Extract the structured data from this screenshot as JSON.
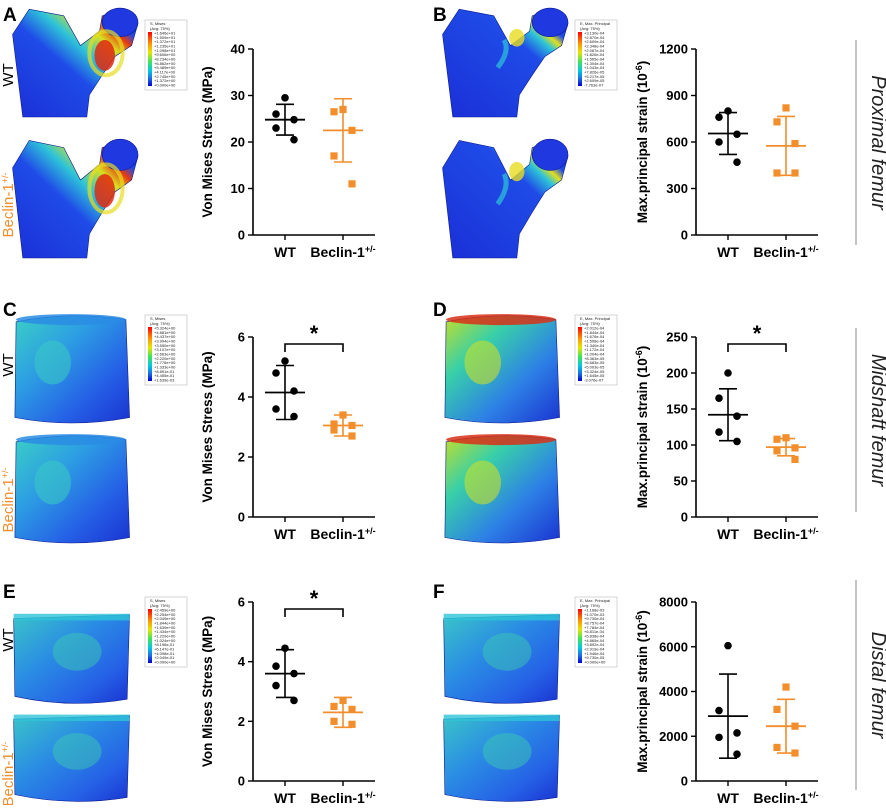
{
  "panels": [
    {
      "id": "A",
      "row": 0,
      "col": 0,
      "model": "prox",
      "fe_top_label": "WT",
      "fe_bottom_label": "Beclin-1+/-",
      "legend": {
        "title": "S, Mises",
        "subtitle": "(Avg: 75%)",
        "values": [
          "+1.646e+01",
          "+1.509e+01",
          "+1.372e+01",
          "+1.235e+01",
          "+1.098e+01",
          "+9.606e+00",
          "+8.234e+00",
          "+6.862e+00",
          "+5.489e+00",
          "+4.117e+00",
          "+2.745e+00",
          "+1.372e+00",
          "+0.000e+00"
        ]
      }
    },
    {
      "id": "B",
      "row": 0,
      "col": 1,
      "model": "prox",
      "fe_top_label": "",
      "fe_bottom_label": "",
      "legend": {
        "title": "E, Max. Principal",
        "subtitle": "(Avg: 75%)",
        "values": [
          "+3.130e-04",
          "+2.870e-04",
          "+2.609e-04",
          "+2.348e-04",
          "+2.087e-04",
          "+1.826e-04",
          "+1.565e-04",
          "+1.304e-04",
          "+1.043e-04",
          "+7.826e-05",
          "+5.217e-05",
          "+2.609e-05",
          "-7.763e-07"
        ]
      }
    },
    {
      "id": "C",
      "row": 1,
      "col": 0,
      "model": "mid",
      "fe_top_label": "WT",
      "fe_bottom_label": "Beclin-1+/-",
      "legend": {
        "title": "S, Mises",
        "subtitle": "(Avg: 75%)",
        "values": [
          "+5.324e+00",
          "+4.881e+00",
          "+4.437e+00",
          "+3.994e+00",
          "+3.550e+00",
          "+3.107e+00",
          "+2.663e+00",
          "+2.220e+00",
          "+1.776e+00",
          "+1.333e+00",
          "+8.891e-01",
          "+4.455e-01",
          "+1.639e-03"
        ]
      }
    },
    {
      "id": "D",
      "row": 1,
      "col": 1,
      "model": "mid",
      "fe_top_label": "",
      "fe_bottom_label": "",
      "legend": {
        "title": "E, Max. Principal",
        "subtitle": "(Avg: 75%)",
        "values": [
          "+2.012e-04",
          "+1.844e-04",
          "+1.676e-04",
          "+1.508e-04",
          "+1.340e-04",
          "+1.172e-04",
          "+1.004e-04",
          "+8.363e-05",
          "+6.683e-05",
          "+5.003e-05",
          "+3.324e-05",
          "+1.645e-05",
          "-3.076e-07"
        ]
      }
    },
    {
      "id": "E",
      "row": 2,
      "col": 0,
      "model": "dist",
      "fe_top_label": "WT",
      "fe_bottom_label": "Beclin-1+/-",
      "legend": {
        "title": "S, Mises",
        "subtitle": "(Avg: 75%)",
        "values": [
          "+2.459e+00",
          "+2.254e+00",
          "+2.049e+00",
          "+1.844e+00",
          "+1.639e+00",
          "+1.434e+00",
          "+1.229e+00",
          "+1.024e+00",
          "+8.196e-01",
          "+6.147e-01",
          "+4.098e-01",
          "+2.049e-01",
          "+0.000e+00"
        ]
      }
    },
    {
      "id": "F",
      "row": 2,
      "col": 1,
      "model": "dist",
      "fe_top_label": "",
      "fe_bottom_label": "",
      "legend": {
        "title": "E, Max. Principal",
        "subtitle": "(Avg: 75%)",
        "values": [
          "+1.168e-03",
          "+1.070e-03",
          "+9.730e-04",
          "+8.757e-04",
          "+7.784e-04",
          "+6.811e-04",
          "+5.838e-04",
          "+4.865e-04",
          "+3.892e-04",
          "+2.919e-04",
          "+1.946e-04",
          "+9.730e-05",
          "+0.000e+00"
        ]
      }
    }
  ],
  "sections": [
    "Proximal femur",
    "Midshaft femur",
    "Distal femur"
  ],
  "chart_data": [
    {
      "panel": "A",
      "type": "scatter",
      "ylabel": "Von Mises Stress (MPa)",
      "ylim": [
        0,
        40
      ],
      "yticks": [
        0,
        10,
        20,
        30,
        40
      ],
      "categories": [
        "WT",
        "Beclin-1+/-"
      ],
      "series": [
        {
          "name": "WT",
          "color": "#000000",
          "marker": "circle",
          "points": [
            29.5,
            26,
            24.8,
            23,
            20.5
          ],
          "mean": 24.8,
          "sd": 3.3
        },
        {
          "name": "Beclin-1+/-",
          "color": "#f28e2b",
          "marker": "square",
          "points": [
            27,
            26.5,
            22.5,
            17,
            11
          ],
          "mean": 22.5,
          "sd": 6.8
        }
      ],
      "significance": ""
    },
    {
      "panel": "B",
      "type": "scatter",
      "ylabel": "Max.principal strain (10⁻⁶)",
      "ylim": [
        0,
        1200
      ],
      "yticks": [
        0,
        300,
        600,
        900,
        1200
      ],
      "categories": [
        "WT",
        "Beclin-1+/-"
      ],
      "series": [
        {
          "name": "WT",
          "color": "#000000",
          "marker": "circle",
          "points": [
            800,
            760,
            650,
            600,
            470
          ],
          "mean": 655,
          "sd": 135
        },
        {
          "name": "Beclin-1+/-",
          "color": "#f28e2b",
          "marker": "square",
          "points": [
            820,
            730,
            590,
            400,
            400
          ],
          "mean": 575,
          "sd": 190
        }
      ],
      "significance": ""
    },
    {
      "panel": "C",
      "type": "scatter",
      "ylabel": "Von Mises Stress (MPa)",
      "ylim": [
        0,
        6
      ],
      "yticks": [
        0,
        2,
        4,
        6
      ],
      "categories": [
        "WT",
        "Beclin-1+/-"
      ],
      "series": [
        {
          "name": "WT",
          "color": "#000000",
          "marker": "circle",
          "points": [
            5.2,
            4.8,
            4.2,
            3.6,
            3.35
          ],
          "mean": 4.15,
          "sd": 0.9
        },
        {
          "name": "Beclin-1+/-",
          "color": "#f28e2b",
          "marker": "square",
          "points": [
            3.4,
            3.1,
            3.05,
            2.9,
            2.7
          ],
          "mean": 3.05,
          "sd": 0.35
        }
      ],
      "significance": "*"
    },
    {
      "panel": "D",
      "type": "scatter",
      "ylabel": "Max.principal strain (10⁻⁶)",
      "ylim": [
        0,
        250
      ],
      "yticks": [
        0,
        50,
        100,
        150,
        200,
        250
      ],
      "categories": [
        "WT",
        "Beclin-1+/-"
      ],
      "series": [
        {
          "name": "WT",
          "color": "#000000",
          "marker": "circle",
          "points": [
            200,
            165,
            140,
            118,
            105
          ],
          "mean": 142,
          "sd": 36
        },
        {
          "name": "Beclin-1+/-",
          "color": "#f28e2b",
          "marker": "square",
          "points": [
            110,
            108,
            96,
            92,
            80
          ],
          "mean": 97,
          "sd": 12
        }
      ],
      "significance": "*"
    },
    {
      "panel": "E",
      "type": "scatter",
      "ylabel": "Von Mises Stress (MPa)",
      "ylim": [
        0,
        6
      ],
      "yticks": [
        0,
        2,
        4,
        6
      ],
      "categories": [
        "WT",
        "Beclin-1+/-"
      ],
      "series": [
        {
          "name": "WT",
          "color": "#000000",
          "marker": "circle",
          "points": [
            4.45,
            3.85,
            3.6,
            3.2,
            2.7
          ],
          "mean": 3.6,
          "sd": 0.8
        },
        {
          "name": "Beclin-1+/-",
          "color": "#f28e2b",
          "marker": "square",
          "points": [
            2.7,
            2.5,
            2.4,
            2.0,
            1.9
          ],
          "mean": 2.3,
          "sd": 0.5
        }
      ],
      "significance": "*"
    },
    {
      "panel": "F",
      "type": "scatter",
      "ylabel": "Max.principal strain (10⁻⁶)",
      "ylim": [
        0,
        8000
      ],
      "yticks": [
        0,
        2000,
        4000,
        6000,
        8000
      ],
      "categories": [
        "WT",
        "Beclin-1+/-"
      ],
      "series": [
        {
          "name": "WT",
          "color": "#000000",
          "marker": "circle",
          "points": [
            6050,
            3150,
            2150,
            1950,
            1200
          ],
          "mean": 2900,
          "sd": 1880
        },
        {
          "name": "Beclin-1+/-",
          "color": "#f28e2b",
          "marker": "square",
          "points": [
            4200,
            3200,
            2450,
            1500,
            1250
          ],
          "mean": 2450,
          "sd": 1200
        }
      ],
      "significance": ""
    }
  ]
}
